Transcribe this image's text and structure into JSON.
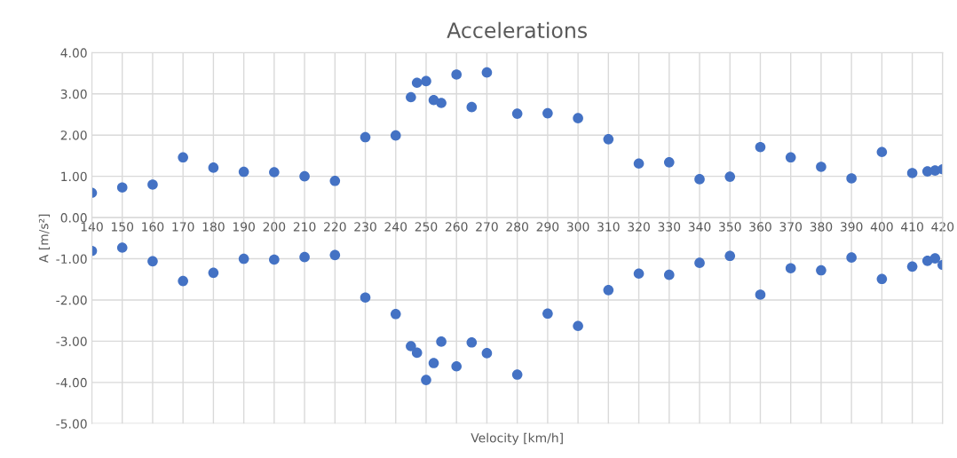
{
  "chart_data": {
    "type": "scatter",
    "title": "Accelerations",
    "xlabel": "Velocity [km/h]",
    "ylabel": "A [m/s²]",
    "series": [
      {
        "color": "#4472c4",
        "x": [
          140,
          150,
          160,
          170,
          180,
          190,
          200,
          210,
          220,
          230,
          240,
          245,
          247,
          250,
          252.5,
          255,
          260,
          265,
          270,
          280,
          290,
          300,
          310,
          320,
          330,
          340,
          350,
          360,
          370,
          380,
          390,
          400,
          410,
          415,
          417.5,
          420
        ],
        "values": [
          0.6,
          0.73,
          0.8,
          1.46,
          1.21,
          1.11,
          1.1,
          1.0,
          0.89,
          1.95,
          1.99,
          2.92,
          3.27,
          3.31,
          2.85,
          2.78,
          3.47,
          2.68,
          3.52,
          2.52,
          2.53,
          2.41,
          1.9,
          1.31,
          1.34,
          0.93,
          0.99,
          1.71,
          1.46,
          1.23,
          0.95,
          1.59,
          1.08,
          1.12,
          1.14,
          1.17
        ]
      },
      {
        "color": "#4472c4",
        "x": [
          140,
          150,
          160,
          170,
          180,
          190,
          200,
          210,
          220,
          230,
          240,
          245,
          247,
          250,
          252.5,
          255,
          260,
          265,
          270,
          280,
          290,
          300,
          310,
          320,
          330,
          340,
          350,
          360,
          370,
          380,
          390,
          400,
          410,
          415,
          417.5,
          420
        ],
        "values": [
          -0.81,
          -0.73,
          -1.06,
          -1.54,
          -1.34,
          -1.0,
          -1.02,
          -0.96,
          -0.91,
          -1.94,
          -2.34,
          -3.12,
          -3.28,
          -3.94,
          -3.53,
          -3.01,
          -3.61,
          -3.03,
          -3.29,
          -3.81,
          -2.33,
          -2.63,
          -1.76,
          -1.36,
          -1.39,
          -1.1,
          -0.93,
          -1.87,
          -1.23,
          -1.28,
          -0.97,
          -1.49,
          -1.19,
          -1.05,
          -0.99,
          -1.15
        ]
      }
    ],
    "xlim": [
      140,
      420
    ],
    "xticks": [
      140,
      150,
      160,
      170,
      180,
      190,
      200,
      210,
      220,
      230,
      240,
      250,
      260,
      270,
      280,
      290,
      300,
      310,
      320,
      330,
      340,
      350,
      360,
      370,
      380,
      390,
      400,
      410,
      420
    ],
    "ylim": [
      -5,
      4
    ],
    "yticks": [
      {
        "value": 4,
        "label": "4.00"
      },
      {
        "value": 3,
        "label": "3.00"
      },
      {
        "value": 2,
        "label": "2.00"
      },
      {
        "value": 1,
        "label": "1.00"
      },
      {
        "value": 0,
        "label": "0.00"
      },
      {
        "value": -1,
        "label": "-1.00"
      },
      {
        "value": -2,
        "label": "-2.00"
      },
      {
        "value": -3,
        "label": "-3.00"
      },
      {
        "value": -4,
        "label": "-4.00"
      },
      {
        "value": -5,
        "label": "-5.00"
      }
    ],
    "grid": true,
    "marker": "circle",
    "legend": false
  }
}
